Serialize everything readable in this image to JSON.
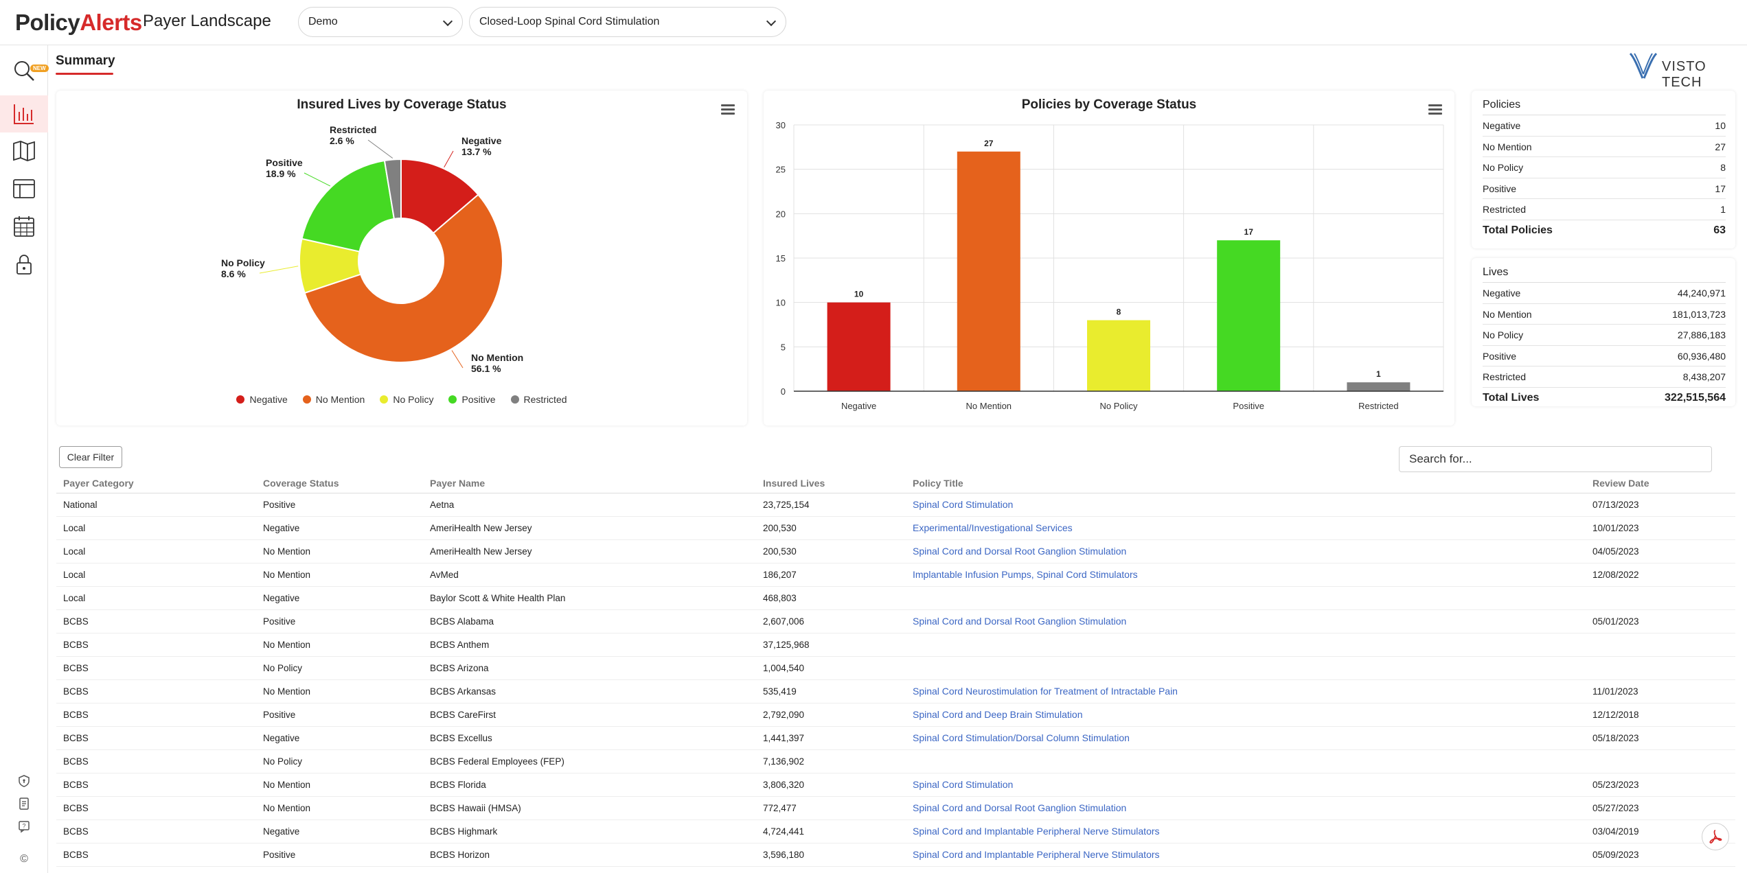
{
  "header": {
    "logo_part1": "Policy",
    "logo_part2": "Alerts",
    "title": "Payer Landscape",
    "project_select": "Demo",
    "policy_select": "Closed-Loop Spinal Cord Stimulation"
  },
  "sidebar": {
    "new_badge": "NEW",
    "items": [
      {
        "name": "search-icon"
      },
      {
        "name": "bar-chart-icon"
      },
      {
        "name": "map-icon"
      },
      {
        "name": "layout-icon"
      },
      {
        "name": "calendar-icon"
      },
      {
        "name": "lock-icon"
      }
    ],
    "footer": [
      {
        "name": "shield-icon"
      },
      {
        "name": "document-icon"
      },
      {
        "name": "help-icon"
      },
      {
        "name": "copyright-icon",
        "label": "©"
      }
    ]
  },
  "tabs": {
    "summary": "Summary"
  },
  "brand": {
    "visto": "VISTO TECH"
  },
  "colors": {
    "Negative": "#d41e1a",
    "No Mention": "#e5621c",
    "No Policy": "#e9ec2e",
    "Positive": "#45d923",
    "Restricted": "#808080",
    "accent": "#d62a2a",
    "link": "#3b66c4"
  },
  "chart_data": [
    {
      "type": "pie",
      "title": "Insured Lives by Coverage Status",
      "donut": true,
      "legend": "bottom",
      "slices": [
        {
          "label": "Negative",
          "value": 13.7
        },
        {
          "label": "No Mention",
          "value": 56.1
        },
        {
          "label": "No Policy",
          "value": 8.6
        },
        {
          "label": "Positive",
          "value": 18.9
        },
        {
          "label": "Restricted",
          "value": 2.6
        }
      ],
      "unit": "%"
    },
    {
      "type": "bar",
      "title": "Policies by Coverage Status",
      "categories": [
        "Negative",
        "No Mention",
        "No Policy",
        "Positive",
        "Restricted"
      ],
      "values": [
        10,
        27,
        8,
        17,
        1
      ],
      "ylim": [
        0,
        30
      ],
      "yticks": [
        0,
        5,
        10,
        15,
        20,
        25,
        30
      ],
      "grid": true,
      "xlabel": "",
      "ylabel": ""
    }
  ],
  "summary": {
    "policies_title": "Policies",
    "policies": [
      {
        "label": "Negative",
        "value": "10"
      },
      {
        "label": "No Mention",
        "value": "27"
      },
      {
        "label": "No Policy",
        "value": "8"
      },
      {
        "label": "Positive",
        "value": "17"
      },
      {
        "label": "Restricted",
        "value": "1"
      }
    ],
    "policies_total_label": "Total Policies",
    "policies_total": "63",
    "lives_title": "Lives",
    "lives": [
      {
        "label": "Negative",
        "value": "44,240,971"
      },
      {
        "label": "No Mention",
        "value": "181,013,723"
      },
      {
        "label": "No Policy",
        "value": "27,886,183"
      },
      {
        "label": "Positive",
        "value": "60,936,480"
      },
      {
        "label": "Restricted",
        "value": "8,438,207"
      }
    ],
    "lives_total_label": "Total Lives",
    "lives_total": "322,515,564"
  },
  "toolbar": {
    "clear_filter": "Clear Filter",
    "search_placeholder": "Search for..."
  },
  "table": {
    "headers": [
      "Payer Category",
      "Coverage Status",
      "Payer Name",
      "Insured Lives",
      "Policy Title",
      "Review Date"
    ],
    "rows": [
      [
        "National",
        "Positive",
        "Aetna",
        "23,725,154",
        "Spinal Cord Stimulation",
        "07/13/2023"
      ],
      [
        "Local",
        "Negative",
        "AmeriHealth New Jersey",
        "200,530",
        "Experimental/Investigational Services",
        "10/01/2023"
      ],
      [
        "Local",
        "No Mention",
        "AmeriHealth New Jersey",
        "200,530",
        "Spinal Cord and Dorsal Root Ganglion Stimulation",
        "04/05/2023"
      ],
      [
        "Local",
        "No Mention",
        "AvMed",
        "186,207",
        "Implantable Infusion Pumps, Spinal Cord Stimulators",
        "12/08/2022"
      ],
      [
        "Local",
        "Negative",
        "Baylor Scott & White Health Plan",
        "468,803",
        "",
        ""
      ],
      [
        "BCBS",
        "Positive",
        "BCBS Alabama",
        "2,607,006",
        "Spinal Cord and Dorsal Root Ganglion Stimulation",
        "05/01/2023"
      ],
      [
        "BCBS",
        "No Mention",
        "BCBS Anthem",
        "37,125,968",
        "",
        ""
      ],
      [
        "BCBS",
        "No Policy",
        "BCBS Arizona",
        "1,004,540",
        "",
        ""
      ],
      [
        "BCBS",
        "No Mention",
        "BCBS Arkansas",
        "535,419",
        "Spinal Cord Neurostimulation for Treatment of Intractable Pain",
        "11/01/2023"
      ],
      [
        "BCBS",
        "Positive",
        "BCBS CareFirst",
        "2,792,090",
        "Spinal Cord and Deep Brain Stimulation",
        "12/12/2018"
      ],
      [
        "BCBS",
        "Negative",
        "BCBS Excellus",
        "1,441,397",
        "Spinal Cord Stimulation/Dorsal Column Stimulation",
        "05/18/2023"
      ],
      [
        "BCBS",
        "No Policy",
        "BCBS Federal Employees (FEP)",
        "7,136,902",
        "",
        ""
      ],
      [
        "BCBS",
        "No Mention",
        "BCBS Florida",
        "3,806,320",
        "Spinal Cord Stimulation",
        "05/23/2023"
      ],
      [
        "BCBS",
        "No Mention",
        "BCBS Hawaii (HMSA)",
        "772,477",
        "Spinal Cord and Dorsal Root Ganglion Stimulation",
        "05/27/2023"
      ],
      [
        "BCBS",
        "Negative",
        "BCBS Highmark",
        "4,724,441",
        "Spinal Cord and Implantable Peripheral Nerve Stimulators",
        "03/04/2019"
      ],
      [
        "BCBS",
        "Positive",
        "BCBS Horizon",
        "3,596,180",
        "Spinal Cord and Implantable Peripheral Nerve Stimulators",
        "05/09/2023"
      ]
    ]
  }
}
